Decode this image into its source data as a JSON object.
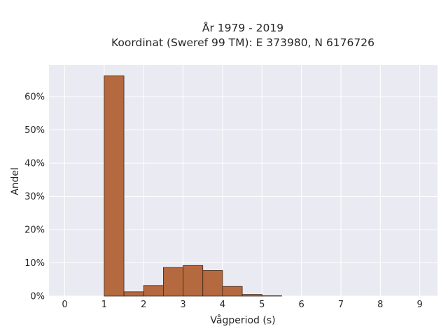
{
  "chart_data": {
    "type": "bar",
    "title_line1": "År 1979 - 2019",
    "title_line2": "Koordinat (Sweref 99 TM): E 373980, N 6176726",
    "xlabel": "Vågperiod (s)",
    "ylabel": "Andel",
    "xlim": [
      -0.4,
      9.45
    ],
    "ylim": [
      0,
      69.5
    ],
    "x_ticks": [
      0,
      1,
      2,
      3,
      4,
      5,
      6,
      7,
      8,
      9
    ],
    "y_ticks": [
      0,
      10,
      20,
      30,
      40,
      50,
      60
    ],
    "y_tick_labels": [
      "0%",
      "10%",
      "20%",
      "30%",
      "40%",
      "50%",
      "60%"
    ],
    "bin_width": 0.5,
    "bins": [
      {
        "start": 1.0,
        "value": 66.3
      },
      {
        "start": 1.5,
        "value": 1.3
      },
      {
        "start": 2.0,
        "value": 3.2
      },
      {
        "start": 2.5,
        "value": 8.6
      },
      {
        "start": 3.0,
        "value": 9.2
      },
      {
        "start": 3.5,
        "value": 7.7
      },
      {
        "start": 4.0,
        "value": 2.9
      },
      {
        "start": 4.5,
        "value": 0.5
      },
      {
        "start": 5.0,
        "value": 0.1
      }
    ],
    "grid": true,
    "colors": {
      "bar_fill": "#b5693e",
      "bar_edge": "#3d2718",
      "plot_bg": "#eaeaf2",
      "grid": "#ffffff"
    }
  }
}
